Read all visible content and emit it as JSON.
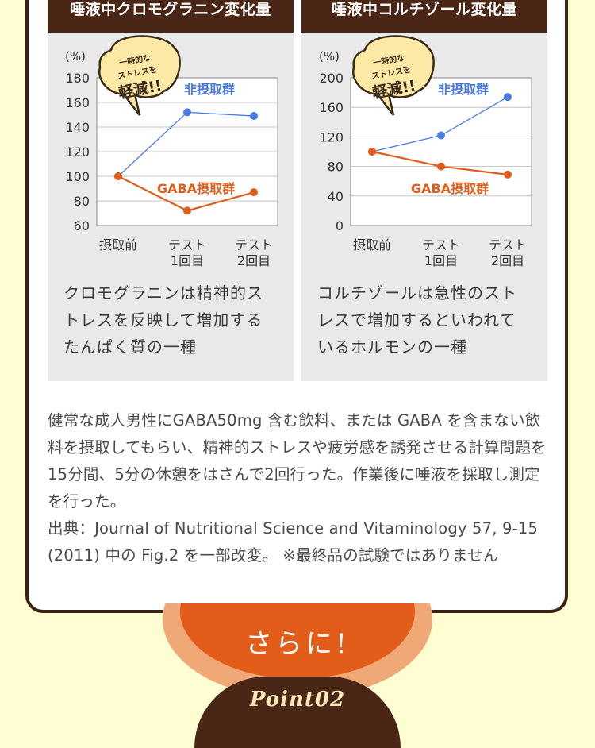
{
  "chart_data": [
    {
      "type": "line",
      "title": "唾液中クロモグラニン変化量",
      "ylabel": "(%)",
      "ylim": [
        60,
        180
      ],
      "yticks": [
        60,
        80,
        100,
        120,
        140,
        160,
        180
      ],
      "categories": [
        "摂取前",
        "テスト\n1回目",
        "テスト\n2回目"
      ],
      "series": [
        {
          "name": "非摂取群",
          "color": "#4b7be5",
          "values": [
            100,
            152,
            149
          ]
        },
        {
          "name": "GABA摂取群",
          "color": "#e25d1a",
          "values": [
            100,
            72,
            87
          ]
        }
      ],
      "bubble": "一時的な\nストレスを\n軽減!!",
      "grid": true
    },
    {
      "type": "line",
      "title": "唾液中コルチゾール変化量",
      "ylabel": "(%)",
      "ylim": [
        0,
        200
      ],
      "yticks": [
        0,
        40,
        80,
        120,
        160,
        200
      ],
      "categories": [
        "摂取前",
        "テスト\n1回目",
        "テスト\n2回目"
      ],
      "series": [
        {
          "name": "非摂取群",
          "color": "#4b7be5",
          "values": [
            100,
            122,
            174
          ]
        },
        {
          "name": "GABA摂取群",
          "color": "#e25d1a",
          "values": [
            100,
            80,
            69
          ]
        }
      ],
      "bubble": "一時的な\nストレスを\n軽減!!",
      "grid": true
    }
  ],
  "descriptions": [
    "クロモグラニンは精神的ス\nトレスを反映して増加する\nたんぱく質の一種",
    "コルチゾールは急性のスト\nレスで増加するといわれて\nいるホルモンの一種"
  ],
  "body": {
    "paragraph": "健常な成人男性にGABA50mg 含む飲料、または GABA を含まない飲料を摂取してもらい、精神的ストレスや疲労感を誘発させる計算問題を15分間、5分の休憩をはさんで2回行った。作業後に唾液を採取し測定を行った。",
    "source": "出典：Journal of Nutritional Science and Vitaminology 57, 9-15 (2011) 中の Fig.2 を一部改変。 ※最終品の試験ではありません"
  },
  "footer": {
    "sarani": "さらに!",
    "point": "Point02"
  },
  "colors": {
    "panel_title_bg": "#4a2616",
    "accent_orange": "#e25d1a",
    "accent_blue": "#4b7be5",
    "bubble_fill": "#fde9a6"
  }
}
